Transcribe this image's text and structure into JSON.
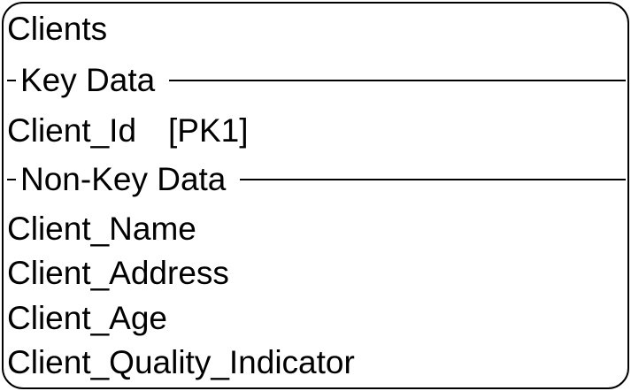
{
  "entity": {
    "name": "Clients",
    "key_section_label": "Key Data",
    "key_attributes": [
      {
        "name": "Client_Id",
        "key_tag": "[PK1]"
      }
    ],
    "nonkey_section_label": "Non-Key Data",
    "nonkey_attributes": [
      "Client_Name",
      "Client_Address",
      "Client_Age",
      "Client_Quality_Indicator"
    ]
  }
}
